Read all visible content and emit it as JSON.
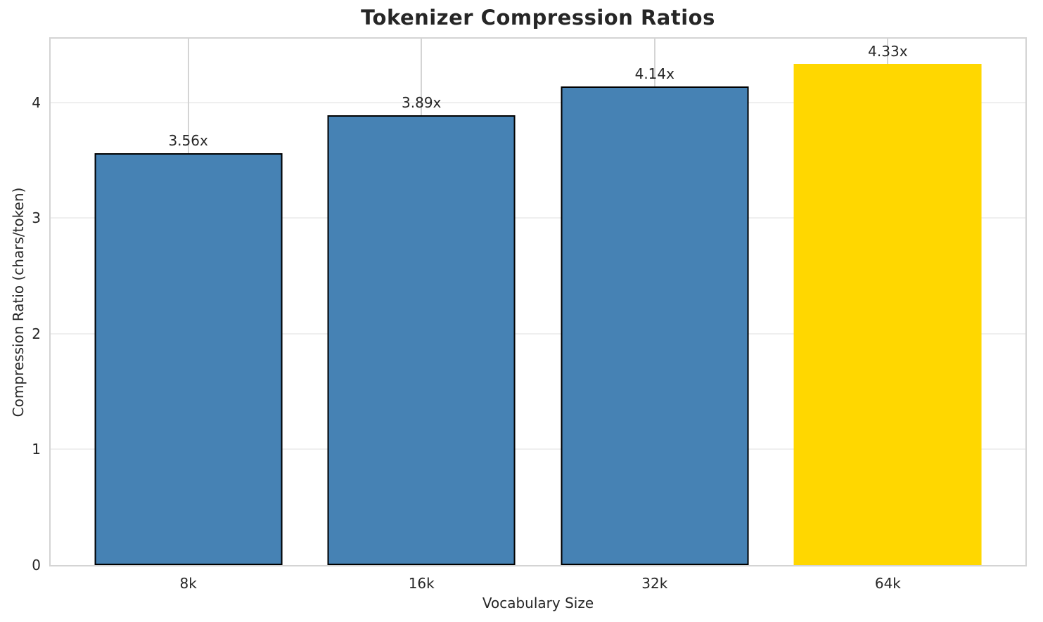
{
  "chart_data": {
    "type": "bar",
    "title": "Tokenizer Compression Ratios",
    "xlabel": "Vocabulary Size",
    "ylabel": "Compression Ratio (chars/token)",
    "categories": [
      "8k",
      "16k",
      "32k",
      "64k"
    ],
    "values": [
      3.56,
      3.89,
      4.14,
      4.33
    ],
    "bar_labels": [
      "3.56x",
      "3.89x",
      "4.14x",
      "4.33x"
    ],
    "yticks": [
      0,
      1,
      2,
      3,
      4
    ],
    "ylim": [
      0,
      4.55
    ],
    "grid": true,
    "legend": null,
    "highlight_index": 3,
    "style": {
      "bar_color": "#4682B4",
      "highlight_color": "#FFD700",
      "bar_edge_color": "#000000",
      "highlight_edge_color": "none",
      "text_color": "#262626"
    }
  }
}
